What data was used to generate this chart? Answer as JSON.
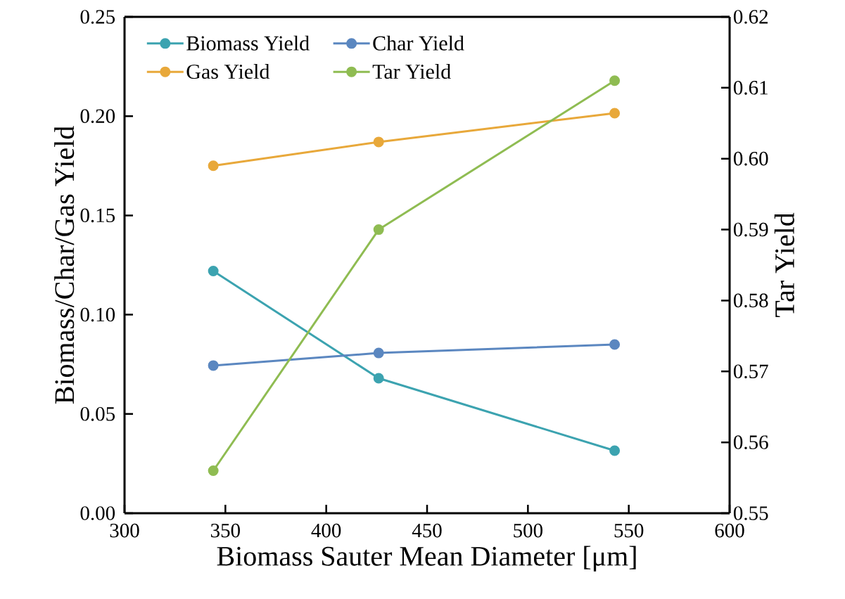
{
  "chart_data": {
    "type": "line",
    "xlabel": "Biomass Sauter Mean Diameter [μm]",
    "ylabel": "Biomass/Char/Gas Yield",
    "y2label": "Tar Yield",
    "xlim": [
      300,
      600
    ],
    "xticks": [
      300,
      350,
      400,
      450,
      500,
      550,
      600
    ],
    "ylim": [
      0,
      0.25
    ],
    "yticks": [
      {
        "value": 0,
        "label": "0.00"
      },
      {
        "value": 0.05,
        "label": "0.05"
      },
      {
        "value": 0.1,
        "label": "0.10"
      },
      {
        "value": 0.15,
        "label": "0.15"
      },
      {
        "value": 0.2,
        "label": "0.20"
      },
      {
        "value": 0.25,
        "label": "0.25"
      }
    ],
    "y2lim": [
      0.55,
      0.62
    ],
    "y2ticks": [
      {
        "value": 0.55,
        "label": "0.55"
      },
      {
        "value": 0.56,
        "label": "0.56"
      },
      {
        "value": 0.57,
        "label": "0.57"
      },
      {
        "value": 0.58,
        "label": "0.58"
      },
      {
        "value": 0.59,
        "label": "0.59"
      },
      {
        "value": 0.6,
        "label": "0.60"
      },
      {
        "value": 0.61,
        "label": "0.61"
      },
      {
        "value": 0.62,
        "label": "0.62"
      }
    ],
    "x": [
      344,
      426,
      543
    ],
    "series": [
      {
        "name": "Biomass Yield",
        "color": "#3ca3b0",
        "values": [
          0.122,
          0.068,
          0.0315
        ]
      },
      {
        "name": "Char Yield",
        "color": "#5b87c0",
        "values": [
          0.0744,
          0.0807,
          0.085
        ]
      },
      {
        "name": "Gas Yield",
        "color": "#e8a83a",
        "values": [
          0.175,
          0.187,
          0.2015
        ]
      },
      {
        "name": "Tar Yield",
        "color": "#8fbc52",
        "values": [
          0.556,
          0.59,
          0.611
        ],
        "axis": "y2"
      }
    ],
    "marker": "circle",
    "line_style": "solid",
    "legend": "top left",
    "grid": false
  }
}
